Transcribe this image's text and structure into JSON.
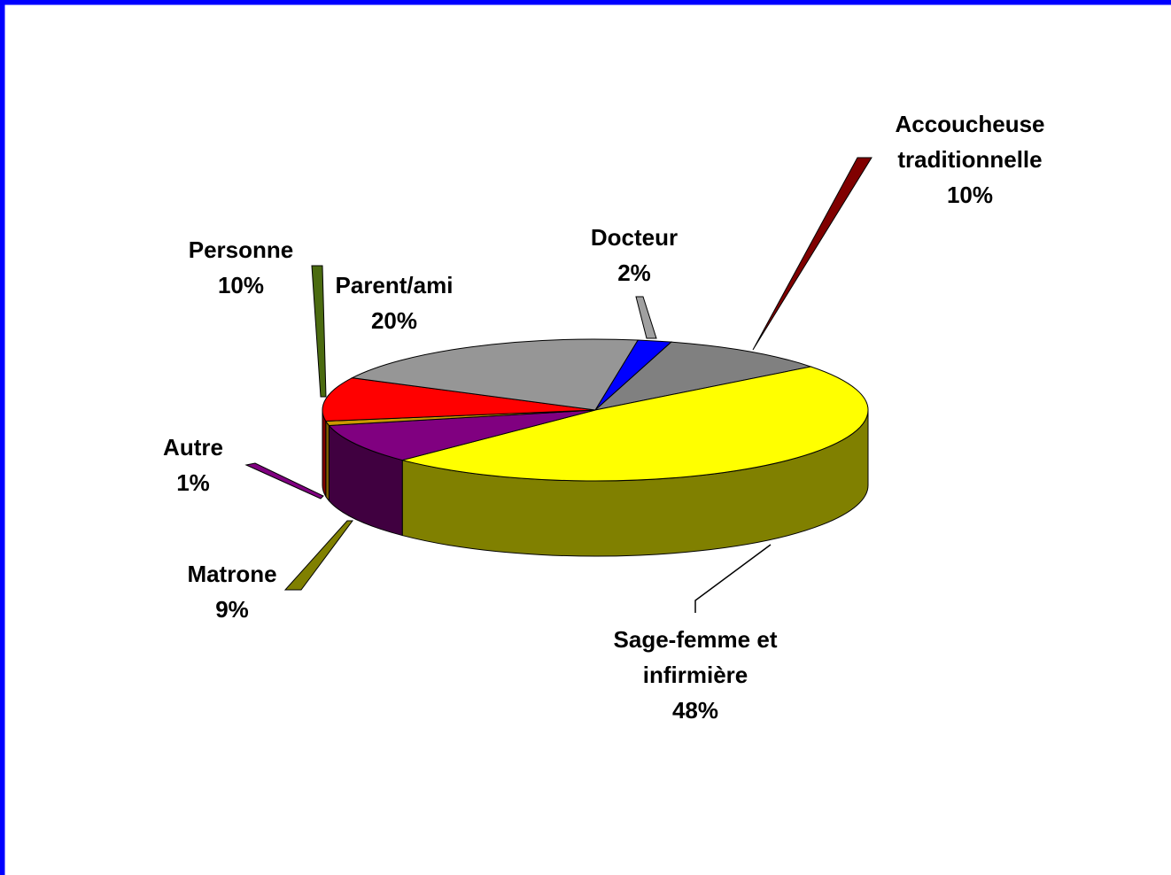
{
  "chart_data": {
    "type": "pie3d",
    "categories": [
      "Docteur",
      "Accoucheuse traditionnelle",
      "Sage-femme et infirmière",
      "Matrone",
      "Autre",
      "Personne",
      "Parent/ami"
    ],
    "values": [
      2,
      10,
      48,
      9,
      1,
      10,
      20
    ],
    "value_labels": [
      "2%",
      "10%",
      "48%",
      "9%",
      "1%",
      "10%",
      "20%"
    ],
    "colors": [
      "#0000ff",
      "#808080",
      "#ffff00",
      "#800080",
      "#cc9900",
      "#ff0000",
      "#969696"
    ],
    "side_colors": [
      "#000080",
      "#404040",
      "#808000",
      "#400040",
      "#806000",
      "#800000",
      "#4b4b4b"
    ]
  }
}
